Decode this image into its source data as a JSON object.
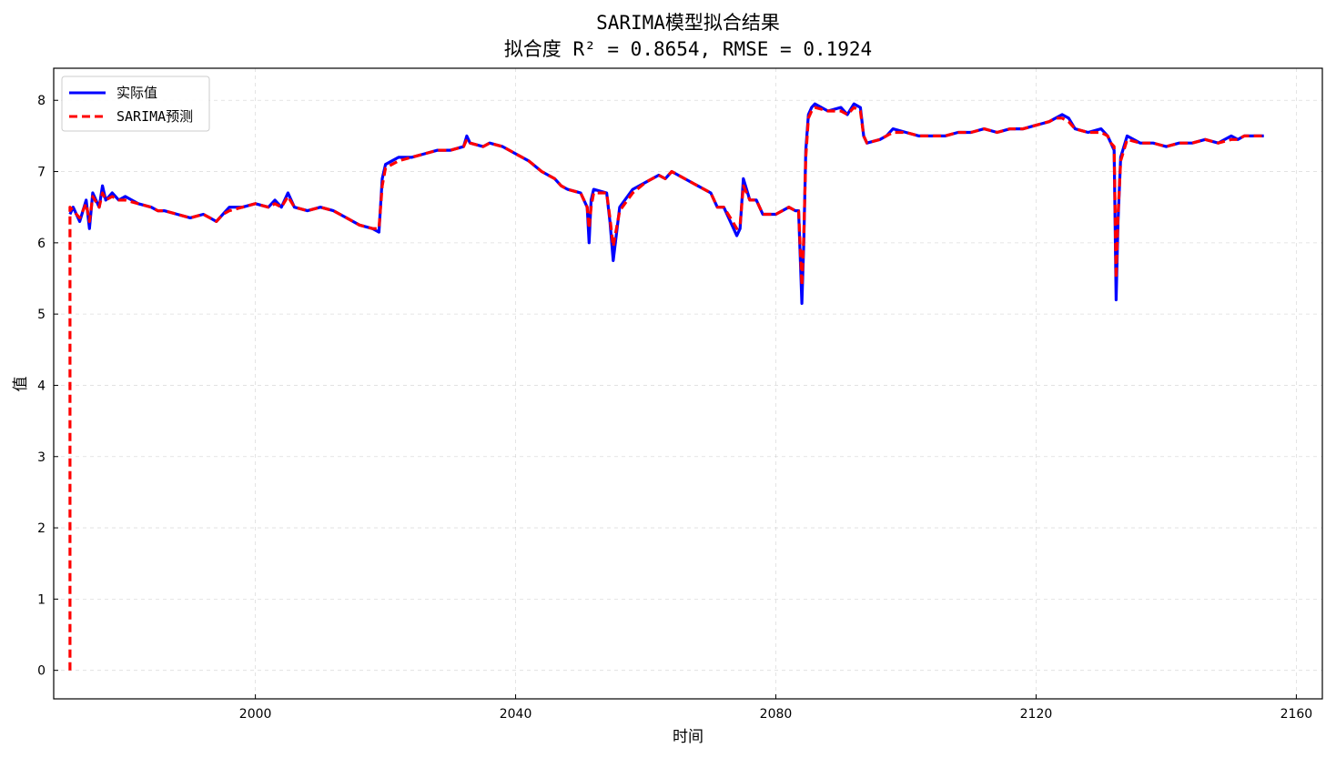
{
  "chart_data": {
    "type": "line",
    "title_line1": "SARIMA模型拟合结果",
    "title_line2": "拟合度 R² = 0.8654, RMSE = 0.1924",
    "xlabel": "时间",
    "ylabel": "值",
    "xlim": [
      1969,
      2164
    ],
    "ylim": [
      -0.4,
      8.45
    ],
    "xticks": [
      2000,
      2040,
      2080,
      2120,
      2160
    ],
    "yticks": [
      0,
      1,
      2,
      3,
      4,
      5,
      6,
      7,
      8
    ],
    "grid": true,
    "legend_position": "top-left",
    "series": [
      {
        "name": "实际值",
        "color": "#0000ff",
        "style": "solid",
        "x": [
          1971.5,
          1972,
          1973,
          1974,
          1974.5,
          1975,
          1976,
          1976.5,
          1977,
          1978,
          1979,
          1980,
          1982,
          1984,
          1985,
          1986,
          1988,
          1990,
          1992,
          1993,
          1994,
          1995,
          1996,
          1998,
          2000,
          2002,
          2003,
          2004,
          2005,
          2006,
          2008,
          2010,
          2012,
          2014,
          2016,
          2018,
          2019,
          2019.5,
          2020,
          2021,
          2022,
          2024,
          2026,
          2028,
          2030,
          2032,
          2032.5,
          2033,
          2035,
          2036,
          2038,
          2040,
          2042,
          2044,
          2046,
          2047,
          2048,
          2050,
          2051,
          2051.3,
          2051.6,
          2052,
          2054,
          2054.5,
          2055,
          2056,
          2058,
          2060,
          2062,
          2063,
          2064,
          2065,
          2066,
          2068,
          2070,
          2071,
          2072,
          2073,
          2074,
          2074.5,
          2075,
          2076,
          2077,
          2078,
          2080,
          2082,
          2083,
          2083.5,
          2084,
          2084.3,
          2084.6,
          2085,
          2085.5,
          2086,
          2088,
          2090,
          2091,
          2092,
          2093,
          2093.5,
          2094,
          2096,
          2097,
          2098,
          2100,
          2102,
          2104,
          2106,
          2108,
          2110,
          2112,
          2114,
          2116,
          2118,
          2120,
          2122,
          2123,
          2124,
          2125,
          2126,
          2128,
          2130,
          2131,
          2131.5,
          2132,
          2132.3,
          2132.6,
          2133,
          2134,
          2136,
          2138,
          2140,
          2142,
          2144,
          2146,
          2148,
          2150,
          2151,
          2152,
          2153,
          2154,
          2155
        ],
        "y": [
          6.4,
          6.5,
          6.3,
          6.6,
          6.2,
          6.7,
          6.5,
          6.8,
          6.6,
          6.7,
          6.6,
          6.65,
          6.55,
          6.5,
          6.45,
          6.45,
          6.4,
          6.35,
          6.4,
          6.35,
          6.3,
          6.4,
          6.5,
          6.5,
          6.55,
          6.5,
          6.6,
          6.5,
          6.7,
          6.5,
          6.45,
          6.5,
          6.45,
          6.35,
          6.25,
          6.2,
          6.15,
          6.9,
          7.1,
          7.15,
          7.2,
          7.2,
          7.25,
          7.3,
          7.3,
          7.35,
          7.5,
          7.4,
          7.35,
          7.4,
          7.35,
          7.25,
          7.15,
          7.0,
          6.9,
          6.8,
          6.75,
          6.7,
          6.5,
          6.0,
          6.6,
          6.75,
          6.7,
          6.3,
          5.75,
          6.5,
          6.75,
          6.85,
          6.95,
          6.9,
          7.0,
          6.95,
          6.9,
          6.8,
          6.7,
          6.5,
          6.5,
          6.3,
          6.1,
          6.2,
          6.9,
          6.6,
          6.6,
          6.4,
          6.4,
          6.5,
          6.45,
          6.45,
          5.15,
          6.0,
          7.3,
          7.8,
          7.9,
          7.95,
          7.85,
          7.9,
          7.8,
          7.95,
          7.9,
          7.5,
          7.4,
          7.45,
          7.5,
          7.6,
          7.55,
          7.5,
          7.5,
          7.5,
          7.55,
          7.55,
          7.6,
          7.55,
          7.6,
          7.6,
          7.65,
          7.7,
          7.75,
          7.8,
          7.75,
          7.6,
          7.55,
          7.6,
          7.5,
          7.4,
          7.3,
          5.2,
          6.3,
          7.2,
          7.5,
          7.4,
          7.4,
          7.35,
          7.4,
          7.4,
          7.45,
          7.4,
          7.5,
          7.45,
          7.5,
          7.5,
          7.5,
          7.5
        ]
      },
      {
        "name": "SARIMA预测",
        "color": "#ff0000",
        "style": "dashed",
        "x": [
          1971.5,
          1971.5,
          1972,
          1973,
          1974,
          1974.5,
          1975,
          1976,
          1976.5,
          1977,
          1978,
          1979,
          1980,
          1982,
          1984,
          1985,
          1986,
          1988,
          1990,
          1992,
          1993,
          1994,
          1995,
          1996,
          1998,
          2000,
          2002,
          2003,
          2004,
          2005,
          2006,
          2008,
          2010,
          2012,
          2014,
          2016,
          2018,
          2019,
          2019.5,
          2020,
          2021,
          2022,
          2024,
          2026,
          2028,
          2030,
          2032,
          2032.5,
          2033,
          2035,
          2036,
          2038,
          2040,
          2042,
          2044,
          2046,
          2047,
          2048,
          2050,
          2051,
          2051.3,
          2051.6,
          2052,
          2054,
          2054.5,
          2055,
          2056,
          2058,
          2060,
          2062,
          2063,
          2064,
          2065,
          2066,
          2068,
          2070,
          2071,
          2072,
          2073,
          2074,
          2074.5,
          2075,
          2076,
          2077,
          2078,
          2080,
          2082,
          2083,
          2083.5,
          2084,
          2084.3,
          2084.6,
          2085,
          2085.5,
          2086,
          2088,
          2090,
          2091,
          2092,
          2093,
          2093.5,
          2094,
          2096,
          2097,
          2098,
          2100,
          2102,
          2104,
          2106,
          2108,
          2110,
          2112,
          2114,
          2116,
          2118,
          2120,
          2122,
          2123,
          2124,
          2125,
          2126,
          2128,
          2130,
          2131,
          2131.5,
          2132,
          2132.3,
          2132.6,
          2133,
          2134,
          2136,
          2138,
          2140,
          2142,
          2144,
          2146,
          2148,
          2150,
          2151,
          2152,
          2153,
          2154,
          2155
        ],
        "y": [
          0.0,
          6.5,
          6.45,
          6.35,
          6.55,
          6.3,
          6.65,
          6.5,
          6.7,
          6.6,
          6.65,
          6.6,
          6.6,
          6.55,
          6.5,
          6.45,
          6.45,
          6.4,
          6.35,
          6.4,
          6.35,
          6.3,
          6.4,
          6.45,
          6.5,
          6.55,
          6.5,
          6.55,
          6.5,
          6.65,
          6.5,
          6.45,
          6.5,
          6.45,
          6.35,
          6.25,
          6.2,
          6.2,
          6.8,
          7.05,
          7.1,
          7.15,
          7.2,
          7.25,
          7.3,
          7.3,
          7.35,
          7.45,
          7.4,
          7.35,
          7.4,
          7.35,
          7.25,
          7.15,
          7.0,
          6.9,
          6.8,
          6.75,
          6.7,
          6.5,
          6.2,
          6.5,
          6.7,
          6.7,
          6.35,
          5.95,
          6.45,
          6.7,
          6.85,
          6.95,
          6.9,
          7.0,
          6.95,
          6.9,
          6.8,
          6.7,
          6.5,
          6.5,
          6.35,
          6.2,
          6.25,
          6.8,
          6.6,
          6.6,
          6.4,
          6.4,
          6.5,
          6.45,
          6.45,
          5.4,
          6.1,
          7.2,
          7.75,
          7.85,
          7.9,
          7.85,
          7.85,
          7.8,
          7.9,
          7.85,
          7.5,
          7.4,
          7.45,
          7.5,
          7.55,
          7.55,
          7.5,
          7.5,
          7.5,
          7.55,
          7.55,
          7.6,
          7.55,
          7.6,
          7.6,
          7.65,
          7.7,
          7.75,
          7.75,
          7.7,
          7.6,
          7.55,
          7.55,
          7.5,
          7.4,
          7.35,
          5.5,
          6.4,
          7.15,
          7.45,
          7.4,
          7.4,
          7.35,
          7.4,
          7.4,
          7.45,
          7.4,
          7.45,
          7.45,
          7.5,
          7.5,
          7.5,
          7.5
        ]
      }
    ]
  }
}
